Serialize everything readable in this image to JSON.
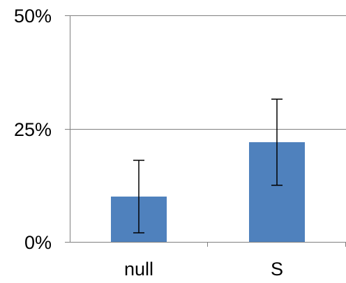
{
  "chart_data": {
    "type": "bar",
    "categories": [
      "null",
      "S"
    ],
    "values": [
      10,
      22
    ],
    "error_bars": [
      {
        "low": 2,
        "high": 18
      },
      {
        "low": 12.5,
        "high": 31.5
      }
    ],
    "ylim": [
      0,
      50
    ],
    "yticks": [
      {
        "value": 0,
        "label": "0%"
      },
      {
        "value": 25,
        "label": "25%"
      },
      {
        "value": 50,
        "label": "50%"
      }
    ],
    "grid": true,
    "legend": "none",
    "colors": {
      "bar": "#4f81bd",
      "axis": "#808080",
      "grid": "#808080",
      "error_bar": "#000000"
    }
  }
}
